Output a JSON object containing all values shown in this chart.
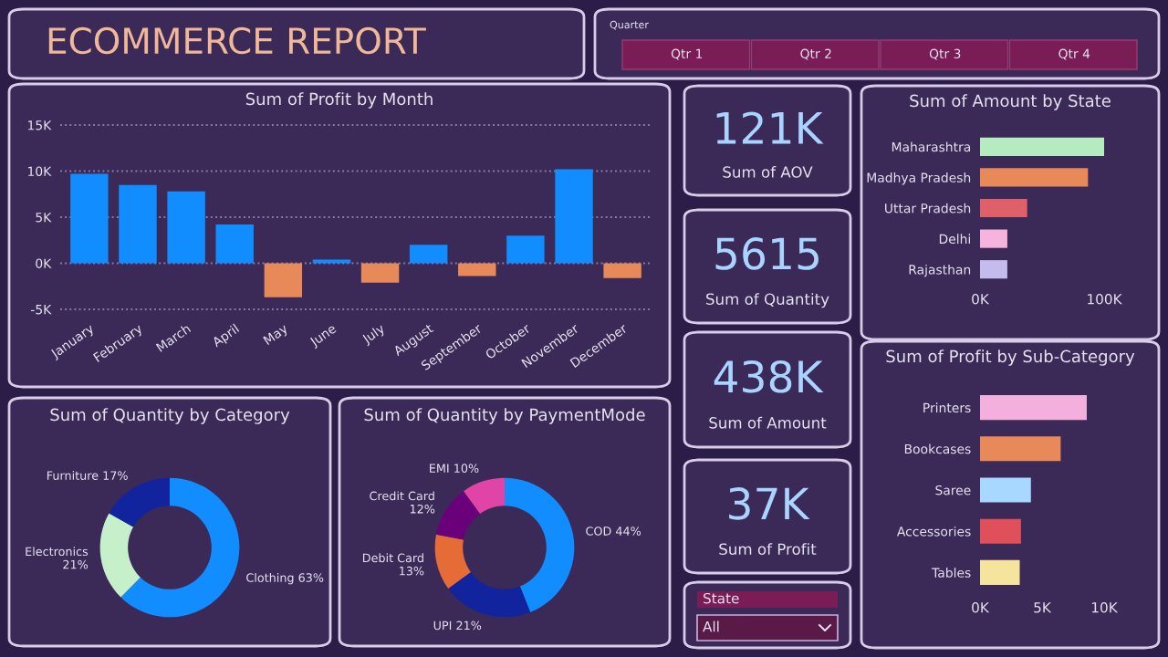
{
  "chart_data": [
    {
      "type": "other",
      "title": "ECOMMERCE REPORT"
    },
    {
      "type": "other",
      "title": "Quarter",
      "annotations": [
        "Qtr 1",
        "Qtr 2",
        "Qtr 3",
        "Qtr 4"
      ]
    },
    {
      "type": "bar",
      "title": "Sum of Profit by Month",
      "categories": [
        "January",
        "February",
        "March",
        "April",
        "May",
        "June",
        "July",
        "August",
        "September",
        "October",
        "November",
        "December"
      ],
      "values": [
        9.7,
        8.5,
        7.8,
        4.2,
        -3.7,
        0.4,
        -2.1,
        2.0,
        -1.4,
        3.0,
        10.2,
        -1.6
      ],
      "colors": [
        "#118dff",
        "#118dff",
        "#118dff",
        "#118dff",
        "#e8895a",
        "#118dff",
        "#e8895a",
        "#118dff",
        "#e8895a",
        "#118dff",
        "#118dff",
        "#e8895a"
      ],
      "ylim": [
        -5.5,
        15.5
      ],
      "yticks": [
        {
          "value": -5,
          "label": "-5K"
        },
        {
          "value": 0,
          "label": "0K"
        },
        {
          "value": 5,
          "label": "5K"
        },
        {
          "value": 10,
          "label": "10K"
        },
        {
          "value": 15,
          "label": "15K"
        }
      ],
      "grid": "y"
    },
    {
      "type": "other",
      "annotations": [
        "121K",
        "Sum of AOV"
      ]
    },
    {
      "type": "bar",
      "orientation": "horizontal",
      "title": "Sum of Amount by State",
      "categories": [
        "Maharashtra",
        "Madhya Pradesh",
        "Uttar Pradesh",
        "Delhi",
        "Rajasthan"
      ],
      "values": [
        100,
        87,
        38,
        22,
        22
      ],
      "colors": [
        "#b4ecc0",
        "#e8895a",
        "#e0606a",
        "#f6b4dc",
        "#c4bcec"
      ],
      "xlim": [
        0,
        100
      ],
      "xticks": [
        {
          "value": 0,
          "label": "0K"
        },
        {
          "value": 100,
          "label": "100K"
        }
      ]
    },
    {
      "type": "other",
      "annotations": [
        "5615",
        "Sum of Quantity"
      ]
    },
    {
      "type": "other",
      "annotations": [
        "438K",
        "Sum of Amount"
      ]
    },
    {
      "type": "donut",
      "title": "Sum of Quantity by Category",
      "categories": [
        "Clothing",
        "Electronics",
        "Furniture"
      ],
      "values": [
        63,
        21,
        17
      ],
      "colors": [
        "#118dff",
        "#c6f0c9",
        "#12239e"
      ],
      "value_labels": [
        "63%",
        "21%",
        "17%"
      ]
    },
    {
      "type": "donut",
      "title": "Sum of Quantity by PaymentMode",
      "categories": [
        "COD",
        "UPI",
        "Debit Card",
        "Credit Card",
        "EMI"
      ],
      "values": [
        44,
        21,
        13,
        12,
        10
      ],
      "colors": [
        "#118dff",
        "#12239e",
        "#e66c37",
        "#6b007b",
        "#e044a7"
      ],
      "value_labels": [
        "44%",
        "21%",
        "13%",
        "12%",
        "10%"
      ]
    },
    {
      "type": "bar",
      "orientation": "horizontal",
      "title": "Sum of Profit by Sub-Category",
      "categories": [
        "Printers",
        "Bookcases",
        "Saree",
        "Accessories",
        "Tables"
      ],
      "values": [
        8.6,
        6.5,
        4.1,
        3.3,
        3.2
      ],
      "colors": [
        "#f4b0dc",
        "#e8895a",
        "#a8d8ff",
        "#e0505a",
        "#f4e49c"
      ],
      "xlim": [
        0,
        10
      ],
      "xticks": [
        {
          "value": 0,
          "label": "0K"
        },
        {
          "value": 5,
          "label": "5K"
        },
        {
          "value": 10,
          "label": "10K"
        }
      ]
    },
    {
      "type": "other",
      "annotations": [
        "37K",
        "Sum of Profit"
      ]
    },
    {
      "type": "other",
      "title": "State",
      "annotations": [
        "All"
      ]
    }
  ]
}
